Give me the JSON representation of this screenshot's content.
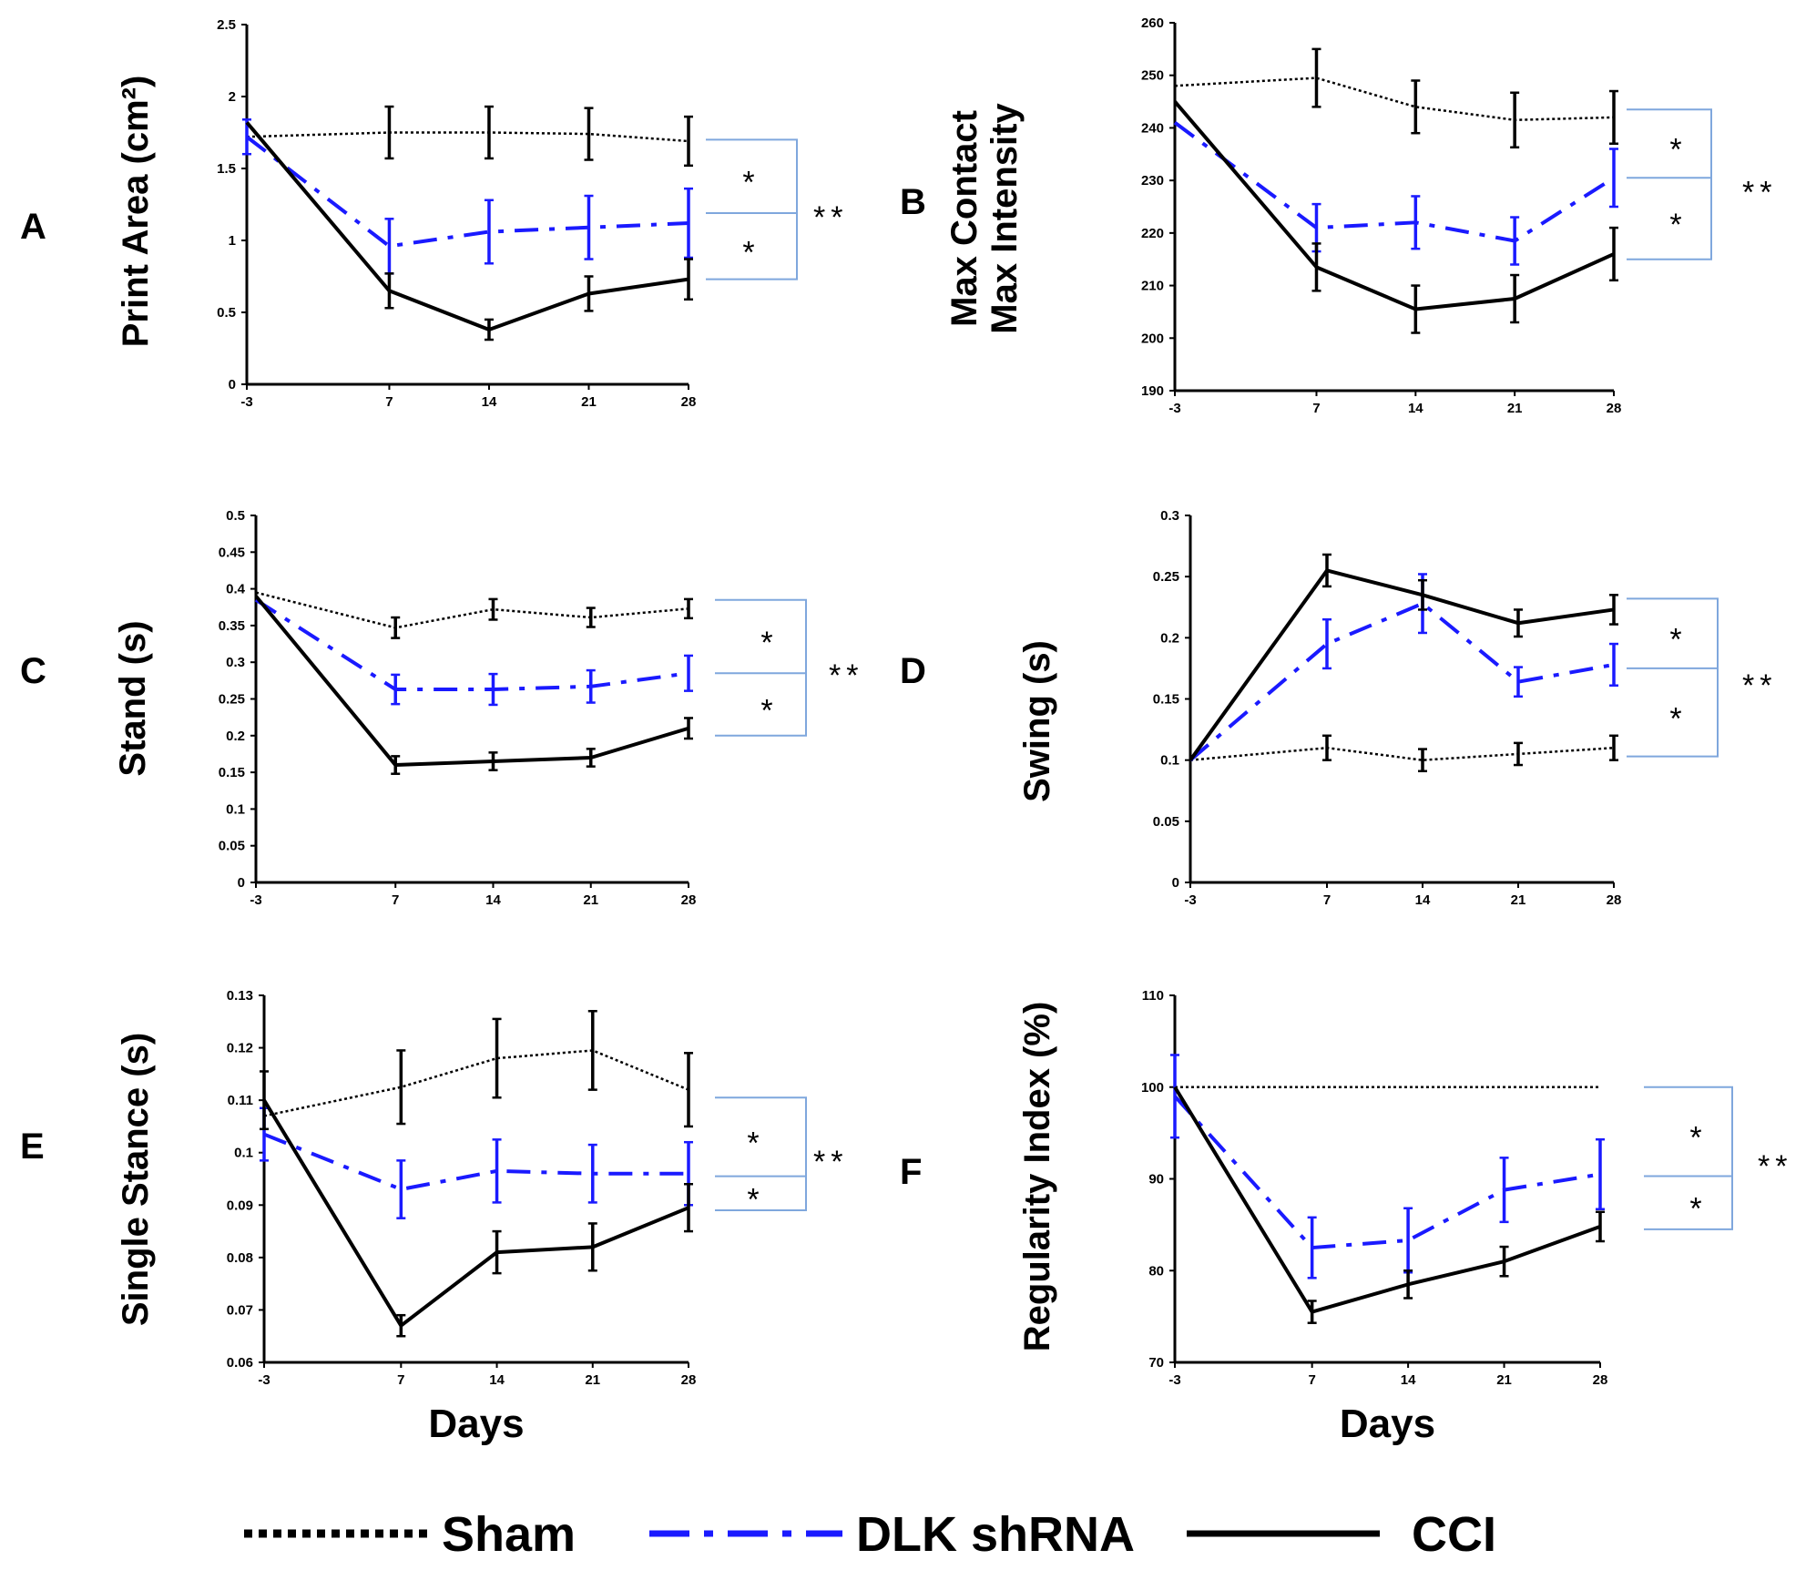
{
  "figure": {
    "legend": [
      {
        "name": "Sham",
        "style": "dotted",
        "color": "#000000"
      },
      {
        "name": "DLK shRNA",
        "style": "dashdot",
        "color": "#1a1aff"
      },
      {
        "name": "CCI",
        "style": "solid",
        "color": "#000000"
      }
    ],
    "x_title": "Days",
    "significance": {
      "single": "*",
      "double": "**"
    },
    "colors": {
      "sham": "#000000",
      "dlk": "#1a1aff",
      "cci": "#000000",
      "bracket": "#7fa7dd",
      "axis": "#000000"
    }
  },
  "chart_data": [
    {
      "panel": "A",
      "type": "line",
      "ylabel": "Print Area (cm²)",
      "ylabel_lines": [
        "Print Area (cm²)"
      ],
      "xlabel": "",
      "x": [
        -3,
        7,
        14,
        21,
        28
      ],
      "x_tick_labels": [
        "-3",
        "7",
        "14",
        "21",
        "28"
      ],
      "ylim": [
        0,
        2.5
      ],
      "y_ticks": [
        0,
        0.5,
        1,
        1.5,
        2,
        2.5
      ],
      "y_tick_labels": [
        "0",
        "0.5",
        "1",
        "1.5",
        "2",
        "2.5"
      ],
      "series": [
        {
          "name": "Sham",
          "values": [
            1.72,
            1.75,
            1.75,
            1.74,
            1.69
          ],
          "errors": [
            0.0,
            0.18,
            0.18,
            0.18,
            0.17
          ]
        },
        {
          "name": "DLK shRNA",
          "values": [
            1.72,
            0.96,
            1.06,
            1.09,
            1.12
          ],
          "errors": [
            0.12,
            0.19,
            0.22,
            0.22,
            0.24
          ]
        },
        {
          "name": "CCI",
          "values": [
            1.82,
            0.65,
            0.38,
            0.63,
            0.73
          ],
          "errors": [
            0.0,
            0.12,
            0.07,
            0.12,
            0.14
          ]
        }
      ],
      "significance": {
        "upper": "*",
        "lower": "*",
        "overall": "**"
      },
      "bracket": {
        "top": 1.7,
        "mid": 1.19,
        "bottom": 0.73
      }
    },
    {
      "panel": "B",
      "type": "line",
      "ylabel": "Max Contact Max Intensity",
      "ylabel_lines": [
        "Max Contact",
        "Max Intensity"
      ],
      "xlabel": "",
      "x": [
        -3,
        7,
        14,
        21,
        28
      ],
      "x_tick_labels": [
        "-3",
        "7",
        "14",
        "21",
        "28"
      ],
      "ylim": [
        190,
        260
      ],
      "y_ticks": [
        190,
        200,
        210,
        220,
        230,
        240,
        250,
        260
      ],
      "y_tick_labels": [
        "190",
        "200",
        "210",
        "220",
        "230",
        "240",
        "250",
        "260"
      ],
      "series": [
        {
          "name": "Sham",
          "values": [
            248,
            249.5,
            244,
            241.5,
            242
          ],
          "errors": [
            0.0,
            5.5,
            5.0,
            5.2,
            5.0
          ]
        },
        {
          "name": "DLK shRNA",
          "values": [
            241,
            221,
            222,
            218.5,
            230.5
          ],
          "errors": [
            0.0,
            4.5,
            5.0,
            4.5,
            5.5
          ]
        },
        {
          "name": "CCI",
          "values": [
            245,
            213.5,
            205.5,
            207.5,
            216
          ],
          "errors": [
            0.0,
            4.5,
            4.5,
            4.5,
            5.0
          ]
        }
      ],
      "significance": {
        "upper": "*",
        "lower": "*",
        "overall": "**"
      },
      "bracket": {
        "top": 243.5,
        "mid": 230.5,
        "bottom": 215
      }
    },
    {
      "panel": "C",
      "type": "line",
      "ylabel": "Stand (s)",
      "ylabel_lines": [
        "Stand (s)"
      ],
      "xlabel": "",
      "x": [
        -3,
        7,
        14,
        21,
        28
      ],
      "x_tick_labels": [
        "-3",
        "7",
        "14",
        "21",
        "28"
      ],
      "ylim": [
        0,
        0.5
      ],
      "y_ticks": [
        0,
        0.05,
        0.1,
        0.15,
        0.2,
        0.25,
        0.3,
        0.35,
        0.4,
        0.45,
        0.5
      ],
      "y_tick_labels": [
        "0",
        "0.05",
        "0.1",
        "0.15",
        "0.2",
        "0.25",
        "0.3",
        "0.35",
        "0.4",
        "0.45",
        "0.5"
      ],
      "series": [
        {
          "name": "Sham",
          "values": [
            0.395,
            0.347,
            0.372,
            0.361,
            0.373
          ],
          "errors": [
            0.0,
            0.014,
            0.014,
            0.013,
            0.013
          ]
        },
        {
          "name": "DLK shRNA",
          "values": [
            0.385,
            0.263,
            0.263,
            0.267,
            0.285
          ],
          "errors": [
            0.0,
            0.02,
            0.021,
            0.022,
            0.024
          ]
        },
        {
          "name": "CCI",
          "values": [
            0.39,
            0.16,
            0.165,
            0.17,
            0.21
          ],
          "errors": [
            0.0,
            0.012,
            0.012,
            0.012,
            0.014
          ]
        }
      ],
      "significance": {
        "upper": "*",
        "lower": "*",
        "overall": "**"
      },
      "bracket": {
        "top": 0.385,
        "mid": 0.285,
        "bottom": 0.2
      }
    },
    {
      "panel": "D",
      "type": "line",
      "ylabel": "Swing (s)",
      "ylabel_lines": [
        "Swing (s)"
      ],
      "xlabel": "",
      "x": [
        -3,
        7,
        14,
        21,
        28
      ],
      "x_tick_labels": [
        "-3",
        "7",
        "14",
        "21",
        "28"
      ],
      "ylim": [
        0,
        0.3
      ],
      "y_ticks": [
        0,
        0.05,
        0.1,
        0.15,
        0.2,
        0.25,
        0.3
      ],
      "y_tick_labels": [
        "0",
        "0.05",
        "0.1",
        "0.15",
        "0.2",
        "0.25",
        "0.3"
      ],
      "series": [
        {
          "name": "Sham",
          "values": [
            0.1,
            0.11,
            0.1,
            0.105,
            0.11
          ],
          "errors": [
            0.0,
            0.01,
            0.009,
            0.009,
            0.01
          ]
        },
        {
          "name": "DLK shRNA",
          "values": [
            0.1,
            0.195,
            0.228,
            0.164,
            0.178
          ],
          "errors": [
            0.0,
            0.02,
            0.024,
            0.012,
            0.017
          ]
        },
        {
          "name": "CCI",
          "values": [
            0.1,
            0.255,
            0.235,
            0.212,
            0.223
          ],
          "errors": [
            0.0,
            0.013,
            0.012,
            0.011,
            0.012
          ]
        }
      ],
      "significance": {
        "upper": "*",
        "lower": "*",
        "overall": "**"
      },
      "bracket": {
        "top": 0.232,
        "mid": 0.175,
        "bottom": 0.103
      }
    },
    {
      "panel": "E",
      "type": "line",
      "ylabel": "Single Stance (s)",
      "ylabel_lines": [
        "Single Stance (s)"
      ],
      "xlabel": "Days",
      "x": [
        -3,
        7,
        14,
        21,
        28
      ],
      "x_tick_labels": [
        "-3",
        "7",
        "14",
        "21",
        "28"
      ],
      "ylim": [
        0.06,
        0.13
      ],
      "y_ticks": [
        0.06,
        0.07,
        0.08,
        0.09,
        0.1,
        0.11,
        0.12,
        0.13
      ],
      "y_tick_labels": [
        "0.06",
        "0.07",
        "0.08",
        "0.09",
        "0.1",
        "0.11",
        "0.12",
        "0.13"
      ],
      "series": [
        {
          "name": "Sham",
          "values": [
            0.107,
            0.1125,
            0.118,
            0.1195,
            0.112
          ],
          "errors": [
            0.0,
            0.007,
            0.0075,
            0.0075,
            0.007
          ]
        },
        {
          "name": "DLK shRNA",
          "values": [
            0.1035,
            0.093,
            0.0965,
            0.096,
            0.096
          ],
          "errors": [
            0.005,
            0.0055,
            0.006,
            0.0055,
            0.006
          ]
        },
        {
          "name": "CCI",
          "values": [
            0.11,
            0.067,
            0.081,
            0.082,
            0.0895
          ],
          "errors": [
            0.0055,
            0.002,
            0.004,
            0.0045,
            0.0045
          ]
        }
      ],
      "significance": {
        "upper": "*",
        "lower": "*",
        "overall": "**"
      },
      "bracket": {
        "top": 0.1105,
        "mid": 0.0955,
        "bottom": 0.089
      }
    },
    {
      "panel": "F",
      "type": "line",
      "ylabel": "Regularity Index (%)",
      "ylabel_lines": [
        "Regularity Index (%)"
      ],
      "xlabel": "Days",
      "x": [
        -3,
        7,
        14,
        21,
        28
      ],
      "x_tick_labels": [
        "-3",
        "7",
        "14",
        "21",
        "28"
      ],
      "ylim": [
        70,
        110
      ],
      "y_ticks": [
        70,
        80,
        90,
        100,
        110
      ],
      "y_tick_labels": [
        "70",
        "80",
        "90",
        "100",
        "110"
      ],
      "series": [
        {
          "name": "Sham",
          "values": [
            100,
            100,
            100,
            100,
            100
          ],
          "errors": [
            0,
            0,
            0,
            0,
            0
          ]
        },
        {
          "name": "DLK shRNA",
          "values": [
            99,
            82.5,
            83.3,
            88.8,
            90.5
          ],
          "errors": [
            4.5,
            3.3,
            3.5,
            3.5,
            3.8
          ]
        },
        {
          "name": "CCI",
          "values": [
            100,
            75.5,
            78.5,
            81,
            84.8
          ],
          "errors": [
            0,
            1.2,
            1.5,
            1.6,
            1.6
          ]
        }
      ],
      "significance": {
        "upper": "*",
        "lower": "*",
        "overall": "**"
      },
      "bracket": {
        "top": 100,
        "mid": 90.3,
        "bottom": 84.5
      }
    }
  ]
}
